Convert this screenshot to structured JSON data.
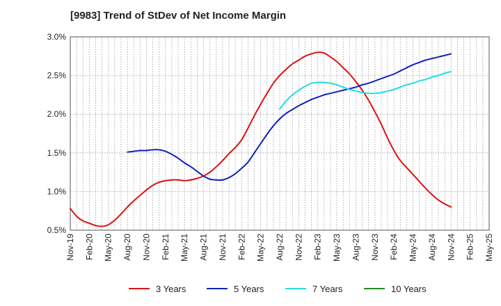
{
  "chart_data": {
    "type": "line",
    "title": "[9983]  Trend of StDev of Net Income Margin",
    "xlabel": "",
    "ylabel": "",
    "ylim": [
      0.5,
      3.0
    ],
    "y_ticks": [
      "0.5%",
      "1.0%",
      "1.5%",
      "2.0%",
      "2.5%",
      "3.0%"
    ],
    "y_tick_values": [
      0.5,
      1.0,
      1.5,
      2.0,
      2.5,
      3.0
    ],
    "x_ticks": [
      "Nov-19",
      "Feb-20",
      "May-20",
      "Aug-20",
      "Nov-20",
      "Feb-21",
      "May-21",
      "Aug-21",
      "Nov-21",
      "Feb-22",
      "May-22",
      "Aug-22",
      "Nov-22",
      "Feb-23",
      "May-23",
      "Aug-23",
      "Nov-23",
      "Feb-24",
      "May-24",
      "Aug-24",
      "Nov-24",
      "Feb-25",
      "May-25"
    ],
    "grid": true,
    "legend_position": "bottom",
    "series": [
      {
        "name": "3 Years",
        "color": "#dd1111",
        "points": [
          [
            "Nov-19",
            0.78
          ],
          [
            "Dec-19",
            0.68
          ],
          [
            "Jan-20",
            0.62
          ],
          [
            "Feb-20",
            0.59
          ],
          [
            "Mar-20",
            0.56
          ],
          [
            "Apr-20",
            0.55
          ],
          [
            "May-20",
            0.57
          ],
          [
            "Jun-20",
            0.63
          ],
          [
            "Jul-20",
            0.71
          ],
          [
            "Aug-20",
            0.8
          ],
          [
            "Sep-20",
            0.88
          ],
          [
            "Oct-20",
            0.95
          ],
          [
            "Nov-20",
            1.02
          ],
          [
            "Dec-20",
            1.08
          ],
          [
            "Jan-21",
            1.12
          ],
          [
            "Feb-21",
            1.14
          ],
          [
            "Mar-21",
            1.15
          ],
          [
            "Apr-21",
            1.15
          ],
          [
            "May-21",
            1.14
          ],
          [
            "Jun-21",
            1.15
          ],
          [
            "Jul-21",
            1.17
          ],
          [
            "Aug-21",
            1.2
          ],
          [
            "Sep-21",
            1.25
          ],
          [
            "Oct-21",
            1.32
          ],
          [
            "Nov-21",
            1.4
          ],
          [
            "Dec-21",
            1.49
          ],
          [
            "Jan-22",
            1.57
          ],
          [
            "Feb-22",
            1.67
          ],
          [
            "Mar-22",
            1.82
          ],
          [
            "Apr-22",
            1.98
          ],
          [
            "May-22",
            2.13
          ],
          [
            "Jun-22",
            2.27
          ],
          [
            "Jul-22",
            2.4
          ],
          [
            "Aug-22",
            2.5
          ],
          [
            "Sep-22",
            2.58
          ],
          [
            "Oct-22",
            2.65
          ],
          [
            "Nov-22",
            2.7
          ],
          [
            "Dec-22",
            2.75
          ],
          [
            "Jan-23",
            2.78
          ],
          [
            "Feb-23",
            2.8
          ],
          [
            "Mar-23",
            2.79
          ],
          [
            "Apr-23",
            2.74
          ],
          [
            "May-23",
            2.68
          ],
          [
            "Jun-23",
            2.6
          ],
          [
            "Jul-23",
            2.52
          ],
          [
            "Aug-23",
            2.42
          ],
          [
            "Sep-23",
            2.31
          ],
          [
            "Oct-23",
            2.18
          ],
          [
            "Nov-23",
            2.03
          ],
          [
            "Dec-23",
            1.87
          ],
          [
            "Jan-24",
            1.69
          ],
          [
            "Feb-24",
            1.53
          ],
          [
            "Mar-24",
            1.4
          ],
          [
            "Apr-24",
            1.31
          ],
          [
            "May-24",
            1.22
          ],
          [
            "Jun-24",
            1.13
          ],
          [
            "Jul-24",
            1.04
          ],
          [
            "Aug-24",
            0.96
          ],
          [
            "Sep-24",
            0.89
          ],
          [
            "Oct-24",
            0.84
          ],
          [
            "Nov-24",
            0.8
          ]
        ]
      },
      {
        "name": "5 Years",
        "color": "#1122bb",
        "points": [
          [
            "Aug-20",
            1.51
          ],
          [
            "Sep-20",
            1.52
          ],
          [
            "Oct-20",
            1.53
          ],
          [
            "Nov-20",
            1.53
          ],
          [
            "Dec-20",
            1.54
          ],
          [
            "Jan-21",
            1.54
          ],
          [
            "Feb-21",
            1.52
          ],
          [
            "Mar-21",
            1.48
          ],
          [
            "Apr-21",
            1.43
          ],
          [
            "May-21",
            1.37
          ],
          [
            "Jun-21",
            1.32
          ],
          [
            "Jul-21",
            1.26
          ],
          [
            "Aug-21",
            1.2
          ],
          [
            "Sep-21",
            1.16
          ],
          [
            "Oct-21",
            1.15
          ],
          [
            "Nov-21",
            1.15
          ],
          [
            "Dec-21",
            1.18
          ],
          [
            "Jan-22",
            1.23
          ],
          [
            "Feb-22",
            1.3
          ],
          [
            "Mar-22",
            1.38
          ],
          [
            "Apr-22",
            1.5
          ],
          [
            "May-22",
            1.62
          ],
          [
            "Jun-22",
            1.74
          ],
          [
            "Jul-22",
            1.85
          ],
          [
            "Aug-22",
            1.94
          ],
          [
            "Sep-22",
            2.01
          ],
          [
            "Oct-22",
            2.06
          ],
          [
            "Nov-22",
            2.11
          ],
          [
            "Dec-22",
            2.15
          ],
          [
            "Jan-23",
            2.19
          ],
          [
            "Feb-23",
            2.22
          ],
          [
            "Mar-23",
            2.25
          ],
          [
            "Apr-23",
            2.27
          ],
          [
            "May-23",
            2.29
          ],
          [
            "Jun-23",
            2.31
          ],
          [
            "Jul-23",
            2.33
          ],
          [
            "Aug-23",
            2.35
          ],
          [
            "Sep-23",
            2.38
          ],
          [
            "Oct-23",
            2.4
          ],
          [
            "Nov-23",
            2.43
          ],
          [
            "Dec-23",
            2.46
          ],
          [
            "Jan-24",
            2.49
          ],
          [
            "Feb-24",
            2.52
          ],
          [
            "Mar-24",
            2.56
          ],
          [
            "Apr-24",
            2.6
          ],
          [
            "May-24",
            2.64
          ],
          [
            "Jun-24",
            2.67
          ],
          [
            "Jul-24",
            2.7
          ],
          [
            "Aug-24",
            2.72
          ],
          [
            "Sep-24",
            2.74
          ],
          [
            "Oct-24",
            2.76
          ],
          [
            "Nov-24",
            2.78
          ]
        ]
      },
      {
        "name": "7 Years",
        "color": "#22dddd",
        "points": [
          [
            "Aug-22",
            2.07
          ],
          [
            "Sep-22",
            2.17
          ],
          [
            "Oct-22",
            2.25
          ],
          [
            "Nov-22",
            2.31
          ],
          [
            "Dec-22",
            2.36
          ],
          [
            "Jan-23",
            2.4
          ],
          [
            "Feb-23",
            2.41
          ],
          [
            "Mar-23",
            2.41
          ],
          [
            "Apr-23",
            2.4
          ],
          [
            "May-23",
            2.38
          ],
          [
            "Jun-23",
            2.35
          ],
          [
            "Jul-23",
            2.32
          ],
          [
            "Aug-23",
            2.3
          ],
          [
            "Sep-23",
            2.28
          ],
          [
            "Oct-23",
            2.27
          ],
          [
            "Nov-23",
            2.27
          ],
          [
            "Dec-23",
            2.28
          ],
          [
            "Jan-24",
            2.3
          ],
          [
            "Feb-24",
            2.32
          ],
          [
            "Mar-24",
            2.35
          ],
          [
            "Apr-24",
            2.38
          ],
          [
            "May-24",
            2.4
          ],
          [
            "Jun-24",
            2.43
          ],
          [
            "Jul-24",
            2.45
          ],
          [
            "Aug-24",
            2.48
          ],
          [
            "Sep-24",
            2.5
          ],
          [
            "Oct-24",
            2.53
          ],
          [
            "Nov-24",
            2.55
          ]
        ]
      },
      {
        "name": "10 Years",
        "color": "#228822",
        "points": []
      }
    ]
  }
}
